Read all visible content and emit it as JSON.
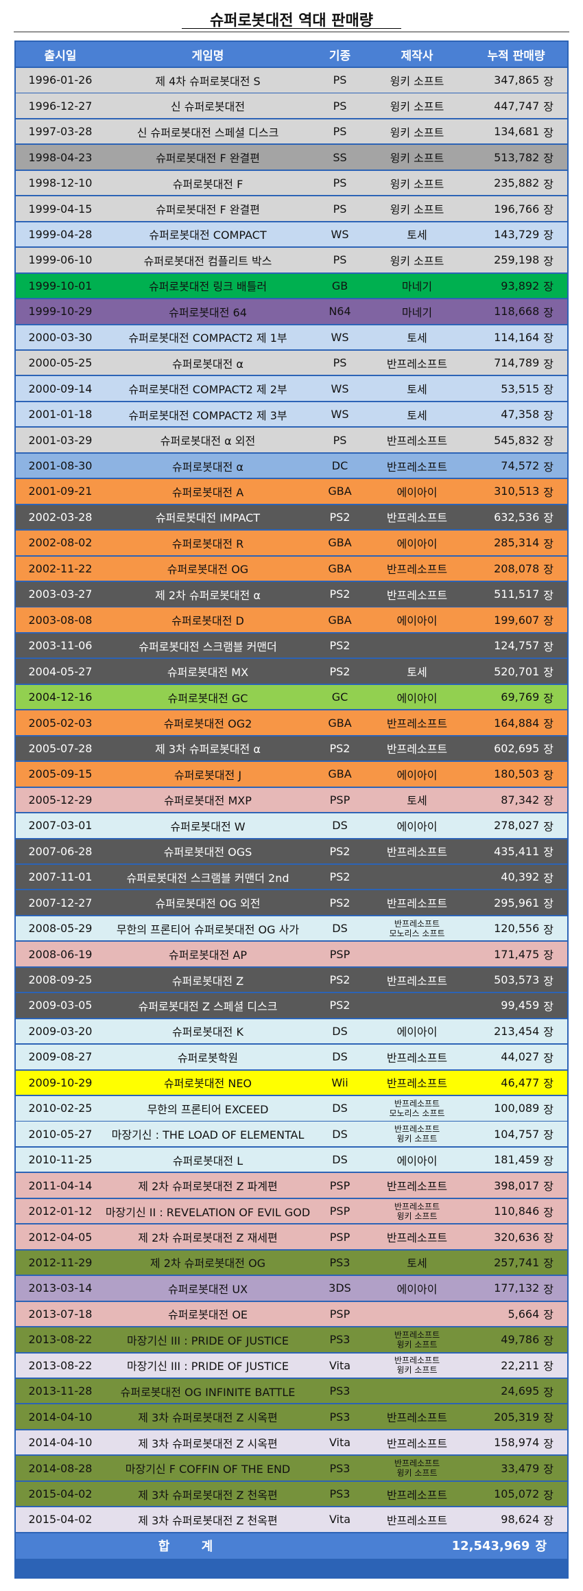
{
  "title": "슈퍼로봇대전 역대 판매량",
  "headers": [
    "출시일",
    "게임명",
    "기종",
    "제작사",
    "누적 판매량"
  ],
  "unit": "장",
  "rows": [
    {
      "date": "1996-01-26",
      "name": "제 4차 슈퍼로봇대전 S",
      "platform": "PS",
      "publisher": [
        "윙키 소프트"
      ],
      "sales": "347,865",
      "bg": "#d6d6d6",
      "fg": "#111111"
    },
    {
      "date": "1996-12-27",
      "name": "신 슈퍼로봇대전",
      "platform": "PS",
      "publisher": [
        "윙키 소프트"
      ],
      "sales": "447,747",
      "bg": "#d6d6d6",
      "fg": "#111111"
    },
    {
      "date": "1997-03-28",
      "name": "신 슈퍼로봇대전 스페셜 디스크",
      "platform": "PS",
      "publisher": [
        "윙키 소프트"
      ],
      "sales": "134,681",
      "bg": "#d6d6d6",
      "fg": "#111111"
    },
    {
      "date": "1998-04-23",
      "name": "슈퍼로봇대전 F 완결편",
      "platform": "SS",
      "publisher": [
        "윙키 소프트"
      ],
      "sales": "513,782",
      "bg": "#a4a4a4",
      "fg": "#111111"
    },
    {
      "date": "1998-12-10",
      "name": "슈퍼로봇대전 F",
      "platform": "PS",
      "publisher": [
        "윙키 소프트"
      ],
      "sales": "235,882",
      "bg": "#d6d6d6",
      "fg": "#111111"
    },
    {
      "date": "1999-04-15",
      "name": "슈퍼로봇대전 F 완결편",
      "platform": "PS",
      "publisher": [
        "윙키 소프트"
      ],
      "sales": "196,766",
      "bg": "#d6d6d6",
      "fg": "#111111"
    },
    {
      "date": "1999-04-28",
      "name": "슈퍼로봇대전 COMPACT",
      "platform": "WS",
      "publisher": [
        "토세"
      ],
      "sales": "143,729",
      "bg": "#c5d9f1",
      "fg": "#111111"
    },
    {
      "date": "1999-06-10",
      "name": "슈퍼로봇대전 컴플리트 박스",
      "platform": "PS",
      "publisher": [
        "윙키 소프트"
      ],
      "sales": "259,198",
      "bg": "#d6d6d6",
      "fg": "#111111"
    },
    {
      "date": "1999-10-01",
      "name": "슈퍼로봇대전 링크 배틀러",
      "platform": "GB",
      "publisher": [
        "마네기"
      ],
      "sales": "93,892",
      "bg": "#00b050",
      "fg": "#111111"
    },
    {
      "date": "1999-10-29",
      "name": "슈퍼로봇대전 64",
      "platform": "N64",
      "publisher": [
        "마네기"
      ],
      "sales": "118,668",
      "bg": "#8064a2",
      "fg": "#111111"
    },
    {
      "date": "2000-03-30",
      "name": "슈퍼로봇대전 COMPACT2 제 1부",
      "platform": "WS",
      "publisher": [
        "토세"
      ],
      "sales": "114,164",
      "bg": "#c5d9f1",
      "fg": "#111111"
    },
    {
      "date": "2000-05-25",
      "name": "슈퍼로봇대전 α",
      "platform": "PS",
      "publisher": [
        "반프레소프트"
      ],
      "sales": "714,789",
      "bg": "#d6d6d6",
      "fg": "#111111"
    },
    {
      "date": "2000-09-14",
      "name": "슈퍼로봇대전 COMPACT2 제 2부",
      "platform": "WS",
      "publisher": [
        "토세"
      ],
      "sales": "53,515",
      "bg": "#c5d9f1",
      "fg": "#111111"
    },
    {
      "date": "2001-01-18",
      "name": "슈퍼로봇대전 COMPACT2 제 3부",
      "platform": "WS",
      "publisher": [
        "토세"
      ],
      "sales": "47,358",
      "bg": "#c5d9f1",
      "fg": "#111111"
    },
    {
      "date": "2001-03-29",
      "name": "슈퍼로봇대전 α 외전",
      "platform": "PS",
      "publisher": [
        "반프레소프트"
      ],
      "sales": "545,832",
      "bg": "#d6d6d6",
      "fg": "#111111"
    },
    {
      "date": "2001-08-30",
      "name": "슈퍼로봇대전 α",
      "platform": "DC",
      "publisher": [
        "반프레소프트"
      ],
      "sales": "74,572",
      "bg": "#8db3e2",
      "fg": "#111111"
    },
    {
      "date": "2001-09-21",
      "name": "슈퍼로봇대전 A",
      "platform": "GBA",
      "publisher": [
        "에이아이"
      ],
      "sales": "310,513",
      "bg": "#f79646",
      "fg": "#111111"
    },
    {
      "date": "2002-03-28",
      "name": "슈퍼로봇대전 IMPACT",
      "platform": "PS2",
      "publisher": [
        "반프레소프트"
      ],
      "sales": "632,536",
      "bg": "#595959",
      "fg": "#ffffff"
    },
    {
      "date": "2002-08-02",
      "name": "슈퍼로봇대전 R",
      "platform": "GBA",
      "publisher": [
        "에이아이"
      ],
      "sales": "285,314",
      "bg": "#f79646",
      "fg": "#111111"
    },
    {
      "date": "2002-11-22",
      "name": "슈퍼로봇대전 OG",
      "platform": "GBA",
      "publisher": [
        "반프레소프트"
      ],
      "sales": "208,078",
      "bg": "#f79646",
      "fg": "#111111"
    },
    {
      "date": "2003-03-27",
      "name": "제 2차 슈퍼로봇대전 α",
      "platform": "PS2",
      "publisher": [
        "반프레소프트"
      ],
      "sales": "511,517",
      "bg": "#595959",
      "fg": "#ffffff"
    },
    {
      "date": "2003-08-08",
      "name": "슈퍼로봇대전 D",
      "platform": "GBA",
      "publisher": [
        "에이아이"
      ],
      "sales": "199,607",
      "bg": "#f79646",
      "fg": "#111111"
    },
    {
      "date": "2003-11-06",
      "name": "슈퍼로봇대전 스크램블 커맨더",
      "platform": "PS2",
      "publisher": [
        ""
      ],
      "sales": "124,757",
      "bg": "#595959",
      "fg": "#ffffff"
    },
    {
      "date": "2004-05-27",
      "name": "슈퍼로봇대전 MX",
      "platform": "PS2",
      "publisher": [
        "토세"
      ],
      "sales": "520,701",
      "bg": "#595959",
      "fg": "#ffffff"
    },
    {
      "date": "2004-12-16",
      "name": "슈퍼로봇대전 GC",
      "platform": "GC",
      "publisher": [
        "에이아이"
      ],
      "sales": "69,769",
      "bg": "#92d050",
      "fg": "#111111"
    },
    {
      "date": "2005-02-03",
      "name": "슈퍼로봇대전 OG2",
      "platform": "GBA",
      "publisher": [
        "반프레소프트"
      ],
      "sales": "164,884",
      "bg": "#f79646",
      "fg": "#111111"
    },
    {
      "date": "2005-07-28",
      "name": "제 3차 슈퍼로봇대전 α",
      "platform": "PS2",
      "publisher": [
        "반프레소프트"
      ],
      "sales": "602,695",
      "bg": "#595959",
      "fg": "#ffffff"
    },
    {
      "date": "2005-09-15",
      "name": "슈퍼로봇대전 J",
      "platform": "GBA",
      "publisher": [
        "에이아이"
      ],
      "sales": "180,503",
      "bg": "#f79646",
      "fg": "#111111"
    },
    {
      "date": "2005-12-29",
      "name": "슈퍼로봇대전 MXP",
      "platform": "PSP",
      "publisher": [
        "토세"
      ],
      "sales": "87,342",
      "bg": "#e6b8b7",
      "fg": "#111111"
    },
    {
      "date": "2007-03-01",
      "name": "슈퍼로봇대전 W",
      "platform": "DS",
      "publisher": [
        "에이아이"
      ],
      "sales": "278,027",
      "bg": "#daeef3",
      "fg": "#111111"
    },
    {
      "date": "2007-06-28",
      "name": "슈퍼로봇대전 OGS",
      "platform": "PS2",
      "publisher": [
        "반프레소프트"
      ],
      "sales": "435,411",
      "bg": "#595959",
      "fg": "#ffffff"
    },
    {
      "date": "2007-11-01",
      "name": "슈퍼로봇대전 스크램블 커맨더 2nd",
      "platform": "PS2",
      "publisher": [
        ""
      ],
      "sales": "40,392",
      "bg": "#595959",
      "fg": "#ffffff"
    },
    {
      "date": "2007-12-27",
      "name": "슈퍼로봇대전 OG 외전",
      "platform": "PS2",
      "publisher": [
        "반프레소프트"
      ],
      "sales": "295,961",
      "bg": "#595959",
      "fg": "#ffffff"
    },
    {
      "date": "2008-05-29",
      "name": "무한의 프론티어 슈퍼로봇대전 OG 사가",
      "platform": "DS",
      "publisher": [
        "반프레소프트",
        "모노리스 소프트"
      ],
      "sales": "120,556",
      "bg": "#daeef3",
      "fg": "#111111"
    },
    {
      "date": "2008-06-19",
      "name": "슈퍼로봇대전 AP",
      "platform": "PSP",
      "publisher": [
        ""
      ],
      "sales": "171,475",
      "bg": "#e6b8b7",
      "fg": "#111111"
    },
    {
      "date": "2008-09-25",
      "name": "슈퍼로봇대전 Z",
      "platform": "PS2",
      "publisher": [
        "반프레소프트"
      ],
      "sales": "503,573",
      "bg": "#595959",
      "fg": "#ffffff"
    },
    {
      "date": "2009-03-05",
      "name": "슈퍼로봇대전 Z 스페셜 디스크",
      "platform": "PS2",
      "publisher": [
        ""
      ],
      "sales": "99,459",
      "bg": "#595959",
      "fg": "#ffffff"
    },
    {
      "date": "2009-03-20",
      "name": "슈퍼로봇대전 K",
      "platform": "DS",
      "publisher": [
        "에이아이"
      ],
      "sales": "213,454",
      "bg": "#daeef3",
      "fg": "#111111"
    },
    {
      "date": "2009-08-27",
      "name": "슈퍼로봇학원",
      "platform": "DS",
      "publisher": [
        "반프레소프트"
      ],
      "sales": "44,027",
      "bg": "#daeef3",
      "fg": "#111111"
    },
    {
      "date": "2009-10-29",
      "name": "슈퍼로봇대전 NEO",
      "platform": "Wii",
      "publisher": [
        "반프레소프트"
      ],
      "sales": "46,477",
      "bg": "#ffff00",
      "fg": "#111111"
    },
    {
      "date": "2010-02-25",
      "name": "무한의 프론티어 EXCEED",
      "platform": "DS",
      "publisher": [
        "반프레소프트",
        "모노리스 소프트"
      ],
      "sales": "100,089",
      "bg": "#daeef3",
      "fg": "#111111"
    },
    {
      "date": "2010-05-27",
      "name": "마장기신 : THE LOAD OF ELEMENTAL",
      "platform": "DS",
      "publisher": [
        "반프레소프트",
        "윙키 소프트"
      ],
      "sales": "104,757",
      "bg": "#daeef3",
      "fg": "#111111"
    },
    {
      "date": "2010-11-25",
      "name": "슈퍼로봇대전 L",
      "platform": "DS",
      "publisher": [
        "에이아이"
      ],
      "sales": "181,459",
      "bg": "#daeef3",
      "fg": "#111111"
    },
    {
      "date": "2011-04-14",
      "name": "제 2차 슈퍼로봇대전 Z 파계편",
      "platform": "PSP",
      "publisher": [
        "반프레소프트"
      ],
      "sales": "398,017",
      "bg": "#e6b8b7",
      "fg": "#111111"
    },
    {
      "date": "2012-01-12",
      "name": "마장기신 II : REVELATION OF EVIL GOD",
      "platform": "PSP",
      "publisher": [
        "반프레소프트",
        "윙키 소프트"
      ],
      "sales": "110,846",
      "bg": "#e6b8b7",
      "fg": "#111111"
    },
    {
      "date": "2012-04-05",
      "name": "제 2차 슈퍼로봇대전 Z 재세편",
      "platform": "PSP",
      "publisher": [
        "반프레소프트"
      ],
      "sales": "320,636",
      "bg": "#e6b8b7",
      "fg": "#111111"
    },
    {
      "date": "2012-11-29",
      "name": "제 2차 슈퍼로봇대전 OG",
      "platform": "PS3",
      "publisher": [
        "토세"
      ],
      "sales": "257,741",
      "bg": "#76923c",
      "fg": "#111111"
    },
    {
      "date": "2013-03-14",
      "name": "슈퍼로봇대전 UX",
      "platform": "3DS",
      "publisher": [
        "에이아이"
      ],
      "sales": "177,132",
      "bg": "#b1a0c7",
      "fg": "#111111"
    },
    {
      "date": "2013-07-18",
      "name": "슈퍼로봇대전 OE",
      "platform": "PSP",
      "publisher": [
        ""
      ],
      "sales": "5,664",
      "bg": "#e6b8b7",
      "fg": "#111111"
    },
    {
      "date": "2013-08-22",
      "name": "마장기신 III : PRIDE OF JUSTICE",
      "platform": "PS3",
      "publisher": [
        "반프레소프트",
        "윙키 소프트"
      ],
      "sales": "49,786",
      "bg": "#76923c",
      "fg": "#111111"
    },
    {
      "date": "2013-08-22",
      "name": "마장기신 III : PRIDE OF JUSTICE",
      "platform": "Vita",
      "publisher": [
        "반프레소프트",
        "윙키 소프트"
      ],
      "sales": "22,211",
      "bg": "#e4dfec",
      "fg": "#111111"
    },
    {
      "date": "2013-11-28",
      "name": "슈퍼로봇대전 OG INFINITE BATTLE",
      "platform": "PS3",
      "publisher": [
        ""
      ],
      "sales": "24,695",
      "bg": "#76923c",
      "fg": "#111111"
    },
    {
      "date": "2014-04-10",
      "name": "제 3차 슈퍼로봇대전 Z 시옥편",
      "platform": "PS3",
      "publisher": [
        "반프레소프트"
      ],
      "sales": "205,319",
      "bg": "#76923c",
      "fg": "#111111"
    },
    {
      "date": "2014-04-10",
      "name": "제 3차 슈퍼로봇대전 Z 시옥편",
      "platform": "Vita",
      "publisher": [
        "반프레소프트"
      ],
      "sales": "158,974",
      "bg": "#e4dfec",
      "fg": "#111111"
    },
    {
      "date": "2014-08-28",
      "name": "마장기신 F COFFIN OF THE END",
      "platform": "PS3",
      "publisher": [
        "반프레소프트",
        "윙키 소프트"
      ],
      "sales": "33,479",
      "bg": "#76923c",
      "fg": "#111111"
    },
    {
      "date": "2015-04-02",
      "name": "제 3차 슈퍼로봇대전 Z 천옥편",
      "platform": "PS3",
      "publisher": [
        "반프레소프트"
      ],
      "sales": "105,072",
      "bg": "#76923c",
      "fg": "#111111"
    },
    {
      "date": "2015-04-02",
      "name": "제 3차 슈퍼로봇대전 Z 천옥편",
      "platform": "Vita",
      "publisher": [
        "반프레소프트"
      ],
      "sales": "98,624",
      "bg": "#e4dfec",
      "fg": "#111111"
    }
  ],
  "total": {
    "label": "합 계",
    "sales": "12,543,969"
  }
}
